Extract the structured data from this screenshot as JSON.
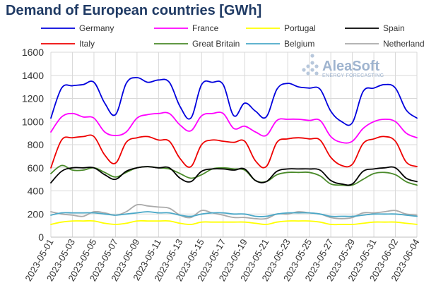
{
  "watermark": {
    "brand": "AleaSoft",
    "tagline": "ENERGY FORECASTING"
  },
  "chart_data": {
    "type": "line",
    "title": "Demand of European countries [GWh]",
    "xlabel": "",
    "ylabel": "",
    "ylim": [
      0,
      1600
    ],
    "yticks": [
      0,
      200,
      400,
      600,
      800,
      1000,
      1200,
      1400,
      1600
    ],
    "grid": true,
    "legend_position": "top",
    "x": [
      "2023-05-01",
      "2023-05-02",
      "2023-05-03",
      "2023-05-04",
      "2023-05-05",
      "2023-05-06",
      "2023-05-07",
      "2023-05-08",
      "2023-05-09",
      "2023-05-10",
      "2023-05-11",
      "2023-05-12",
      "2023-05-13",
      "2023-05-14",
      "2023-05-15",
      "2023-05-16",
      "2023-05-17",
      "2023-05-18",
      "2023-05-19",
      "2023-05-20",
      "2023-05-21",
      "2023-05-22",
      "2023-05-23",
      "2023-05-24",
      "2023-05-25",
      "2023-05-26",
      "2023-05-27",
      "2023-05-28",
      "2023-05-29",
      "2023-05-30",
      "2023-05-31",
      "2023-06-01",
      "2023-06-02",
      "2023-06-03",
      "2023-06-04"
    ],
    "xtick_labels": [
      "2023-05-01",
      "2023-05-03",
      "2023-05-05",
      "2023-05-07",
      "2023-05-09",
      "2023-05-11",
      "2023-05-13",
      "2023-05-15",
      "2023-05-17",
      "2023-05-19",
      "2023-05-21",
      "2023-05-23",
      "2023-05-25",
      "2023-05-27",
      "2023-05-29",
      "2023-05-31",
      "2023-06-02",
      "2023-06-04"
    ],
    "series": [
      {
        "name": "Germany",
        "color": "#0000dd",
        "values": [
          1030,
          1290,
          1310,
          1320,
          1340,
          1160,
          1060,
          1330,
          1380,
          1340,
          1360,
          1340,
          1130,
          1030,
          1320,
          1340,
          1320,
          1050,
          1160,
          1090,
          1040,
          1280,
          1330,
          1300,
          1290,
          1280,
          1090,
          1000,
          990,
          1260,
          1290,
          1320,
          1290,
          1100,
          1030
        ]
      },
      {
        "name": "France",
        "color": "#ff00ff",
        "values": [
          910,
          1040,
          1070,
          1040,
          1030,
          910,
          880,
          910,
          1030,
          1060,
          1070,
          1070,
          970,
          920,
          1050,
          1070,
          1070,
          940,
          960,
          910,
          880,
          1010,
          1020,
          1020,
          1010,
          1010,
          870,
          820,
          830,
          940,
          1000,
          1020,
          1000,
          900,
          860
        ]
      },
      {
        "name": "Portugal",
        "color": "#ffff00",
        "values": [
          110,
          130,
          140,
          140,
          140,
          120,
          110,
          120,
          140,
          140,
          140,
          140,
          120,
          110,
          130,
          130,
          130,
          130,
          130,
          120,
          110,
          130,
          140,
          140,
          140,
          130,
          110,
          110,
          110,
          120,
          130,
          130,
          130,
          120,
          110
        ]
      },
      {
        "name": "Spain",
        "color": "#000000",
        "values": [
          470,
          570,
          600,
          600,
          600,
          540,
          500,
          570,
          600,
          610,
          600,
          600,
          510,
          480,
          570,
          590,
          590,
          580,
          590,
          490,
          480,
          570,
          590,
          590,
          590,
          580,
          490,
          460,
          460,
          570,
          590,
          600,
          600,
          510,
          480
        ]
      },
      {
        "name": "Italy",
        "color": "#ee0000",
        "values": [
          600,
          840,
          860,
          870,
          870,
          710,
          640,
          820,
          860,
          870,
          840,
          830,
          680,
          610,
          800,
          840,
          830,
          820,
          830,
          660,
          610,
          820,
          850,
          860,
          850,
          840,
          690,
          620,
          630,
          810,
          850,
          870,
          830,
          650,
          610
        ]
      },
      {
        "name": "Great Britain",
        "color": "#4a8a2a",
        "values": [
          550,
          620,
          580,
          580,
          600,
          560,
          520,
          560,
          600,
          610,
          600,
          590,
          550,
          510,
          540,
          590,
          600,
          590,
          580,
          490,
          480,
          540,
          560,
          560,
          560,
          530,
          460,
          450,
          450,
          500,
          550,
          560,
          540,
          480,
          450
        ]
      },
      {
        "name": "Belgium",
        "color": "#4aa8c8",
        "values": [
          190,
          210,
          210,
          210,
          210,
          200,
          190,
          200,
          210,
          220,
          210,
          210,
          190,
          180,
          200,
          210,
          210,
          200,
          200,
          180,
          180,
          200,
          210,
          210,
          210,
          200,
          180,
          180,
          180,
          190,
          200,
          200,
          200,
          190,
          180
        ]
      },
      {
        "name": "Netherlands",
        "color": "#aaaaaa",
        "values": [
          220,
          200,
          190,
          180,
          220,
          210,
          190,
          220,
          280,
          270,
          260,
          250,
          190,
          170,
          230,
          210,
          190,
          170,
          170,
          160,
          160,
          200,
          200,
          220,
          210,
          200,
          170,
          160,
          170,
          210,
          210,
          220,
          230,
          200,
          190
        ]
      }
    ]
  }
}
